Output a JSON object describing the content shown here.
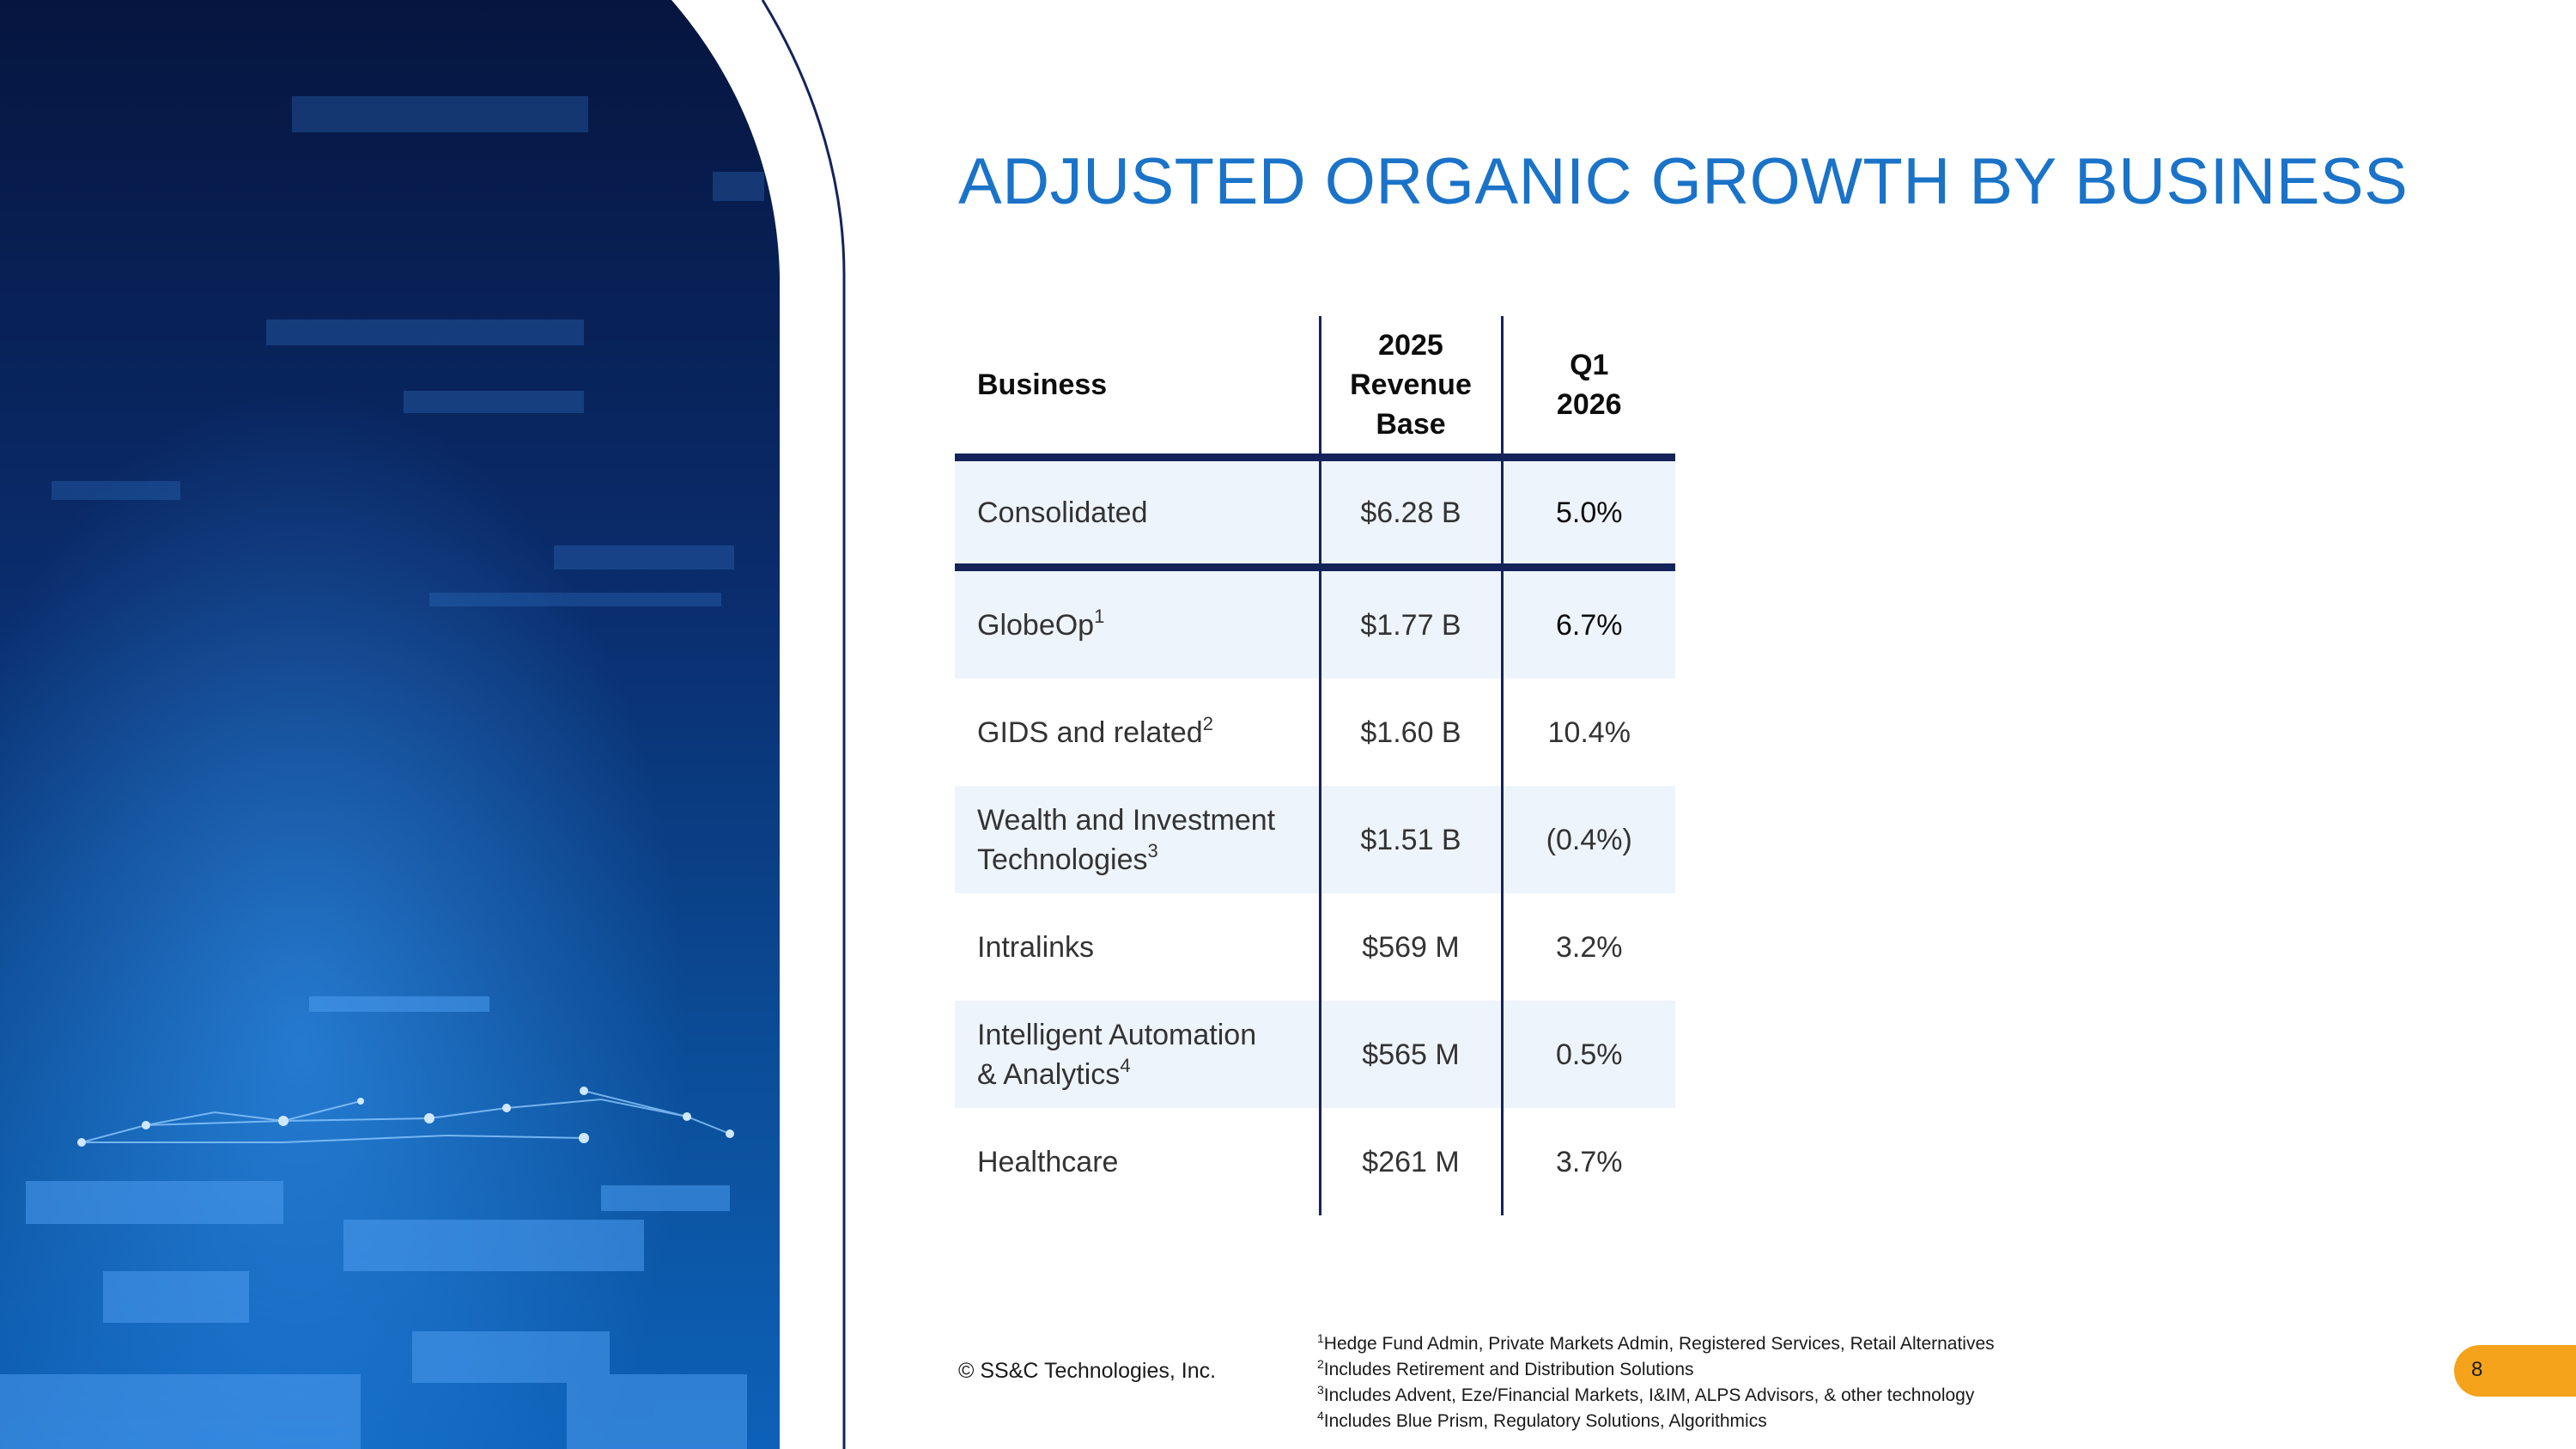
{
  "slide": {
    "title": "ADJUSTED ORGANIC GROWTH BY BUSINESS",
    "copyright": "© SS&C Technologies, Inc.",
    "page_number": "8",
    "colors": {
      "title": "#1a73c8",
      "rule": "#14235a",
      "row_shade": "#eef4fc",
      "badge": "#f5a31a"
    }
  },
  "table": {
    "headers": {
      "business": "Business",
      "revenue_base_lines": [
        "2025",
        "Revenue",
        "Base"
      ],
      "period_lines": [
        "Q1",
        "2026"
      ]
    },
    "rows": [
      {
        "business": "Consolidated",
        "sup": "",
        "revenue": "$6.28 B",
        "growth": "5.0%"
      },
      {
        "business": "GlobeOp",
        "sup": "1",
        "revenue": "$1.77 B",
        "growth": "6.7%"
      },
      {
        "business": "GIDS and related",
        "sup": "2",
        "revenue": "$1.60 B",
        "growth": "10.4%"
      },
      {
        "business_lines": [
          "Wealth and Investment",
          "Technologies"
        ],
        "sup": "3",
        "revenue": "$1.51 B",
        "growth": "(0.4%)"
      },
      {
        "business": "Intralinks",
        "sup": "",
        "revenue": "$569 M",
        "growth": "3.2%"
      },
      {
        "business_lines": [
          "Intelligent Automation",
          "& Analytics"
        ],
        "sup": "4",
        "revenue": "$565 M",
        "growth": "0.5%"
      },
      {
        "business": "Healthcare",
        "sup": "",
        "revenue": "$261 M",
        "growth": "3.7%"
      }
    ]
  },
  "footnotes": [
    {
      "num": "1",
      "text": "Hedge Fund Admin, Private Markets Admin, Registered Services, Retail Alternatives"
    },
    {
      "num": "2",
      "text": "Includes Retirement and Distribution Solutions"
    },
    {
      "num": "3",
      "text": "Includes Advent, Eze/Financial Markets, I&IM, ALPS Advisors, & other technology"
    },
    {
      "num": "4",
      "text": "Includes Blue Prism, Regulatory Solutions, Algorithmics"
    }
  ]
}
